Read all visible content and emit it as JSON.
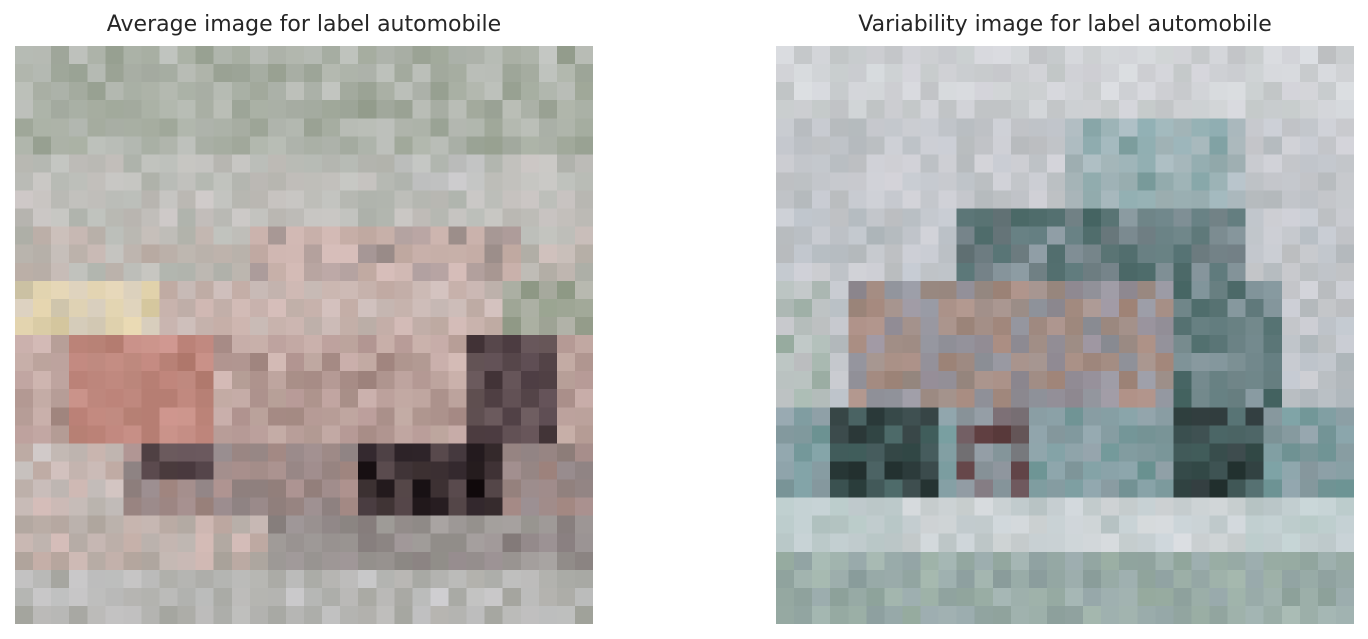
{
  "panels": [
    {
      "title": "Average image for label automobile"
    },
    {
      "title": "Variability image for label automobile"
    }
  ],
  "colors": {
    "average_palette": [
      "#a9a9a3",
      "#b8bcb6",
      "#c5c0bd",
      "#cbb3ad",
      "#8f8586",
      "#6b5a5c",
      "#a88c87",
      "#c9938a",
      "#b77e73",
      "#dfd0a8",
      "#8f9a86",
      "#4a3a40",
      "#1a1216",
      "#c5c5c6"
    ],
    "variability_palette": [
      "#c8c9cd",
      "#b9c0c6",
      "#a7b7bb",
      "#6e9a9a",
      "#4d6b6a",
      "#2a3636",
      "#8f9fa6",
      "#9c8893",
      "#a98b7f",
      "#5e3c3e",
      "#9fb3a8",
      "#b6c8c6",
      "#d2d6d8",
      "#c3cdd0"
    ]
  }
}
